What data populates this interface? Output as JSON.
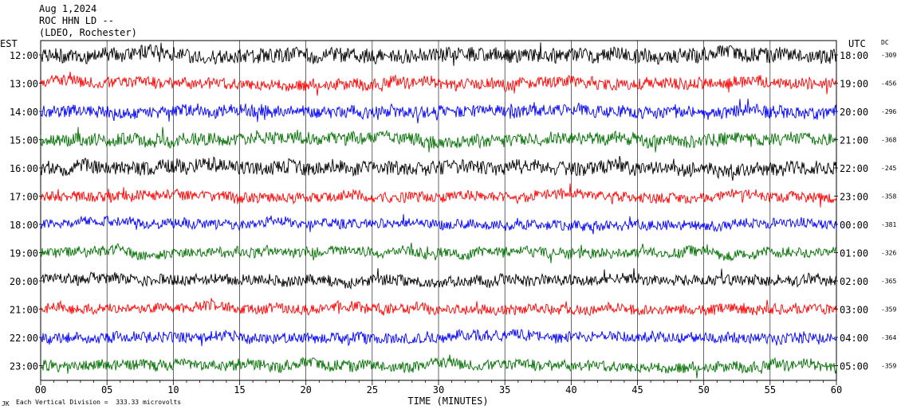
{
  "header": {
    "date": "Aug 1,2024",
    "station": "ROC HHN LD --",
    "network": "(LDEO, Rochester)"
  },
  "labels": {
    "left_tz": "EST",
    "right_tz": "UTC",
    "dc": "DC"
  },
  "footer": {
    "scale": "Each Vertical Division =  333.33 microvolts",
    "corner_mark": "JK"
  },
  "chart_data": {
    "type": "line",
    "title": "",
    "xlabel": "TIME (MINUTES)",
    "xlim": [
      0,
      60
    ],
    "x_ticks": [
      "00",
      "05",
      "10",
      "15",
      "20",
      "25",
      "30",
      "35",
      "40",
      "45",
      "50",
      "55",
      "60"
    ],
    "grid": true,
    "color_cycle": [
      "#000000",
      "#ff0000",
      "#0000ff",
      "#007000"
    ],
    "rows": [
      {
        "est": "12:00",
        "utc": "18:00",
        "dc": "-309",
        "color": "#000000",
        "amp": 1.0
      },
      {
        "est": "13:00",
        "utc": "19:00",
        "dc": "-456",
        "color": "#ff0000",
        "amp": 0.8
      },
      {
        "est": "14:00",
        "utc": "20:00",
        "dc": "-296",
        "color": "#0000ff",
        "amp": 0.85
      },
      {
        "est": "15:00",
        "utc": "21:00",
        "dc": "-368",
        "color": "#007000",
        "amp": 0.9
      },
      {
        "est": "16:00",
        "utc": "22:00",
        "dc": "-245",
        "color": "#000000",
        "amp": 1.0
      },
      {
        "est": "17:00",
        "utc": "23:00",
        "dc": "-358",
        "color": "#ff0000",
        "amp": 0.7
      },
      {
        "est": "18:00",
        "utc": "00:00",
        "dc": "-381",
        "color": "#0000ff",
        "amp": 0.65
      },
      {
        "est": "19:00",
        "utc": "01:00",
        "dc": "-326",
        "color": "#007000",
        "amp": 0.7
      },
      {
        "est": "20:00",
        "utc": "02:00",
        "dc": "-365",
        "color": "#000000",
        "amp": 0.75
      },
      {
        "est": "21:00",
        "utc": "03:00",
        "dc": "-359",
        "color": "#ff0000",
        "amp": 0.7
      },
      {
        "est": "22:00",
        "utc": "04:00",
        "dc": "-364",
        "color": "#0000ff",
        "amp": 0.75
      },
      {
        "est": "23:00",
        "utc": "05:00",
        "dc": "-359",
        "color": "#007000",
        "amp": 0.75
      }
    ]
  }
}
